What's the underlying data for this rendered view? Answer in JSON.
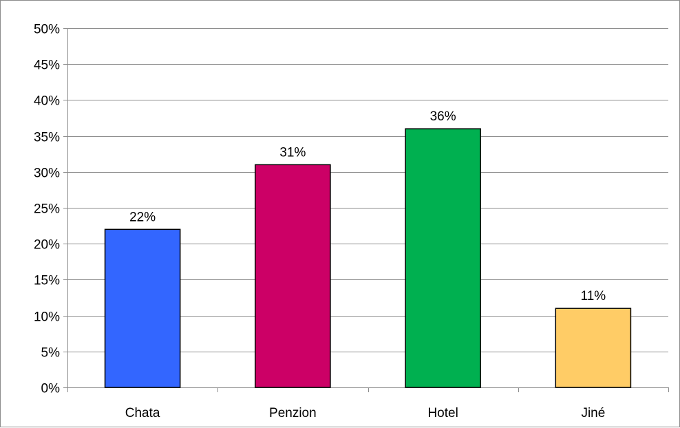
{
  "chart_data": {
    "type": "bar",
    "title": "",
    "xlabel": "",
    "ylabel": "",
    "categories": [
      "Chata",
      "Penzion",
      "Hotel",
      "Jiné"
    ],
    "values": [
      22,
      31,
      36,
      11
    ],
    "value_labels": [
      "22%",
      "31%",
      "36%",
      "11%"
    ],
    "colors": [
      "#3366ff",
      "#cc0066",
      "#00b050",
      "#ffcc66"
    ],
    "ylim": [
      0,
      50
    ],
    "yticks": [
      0,
      5,
      10,
      15,
      20,
      25,
      30,
      35,
      40,
      45,
      50
    ],
    "ytick_labels": [
      "0%",
      "5%",
      "10%",
      "15%",
      "20%",
      "25%",
      "30%",
      "35%",
      "40%",
      "45%",
      "50%"
    ],
    "grid": true,
    "legend": "none"
  }
}
